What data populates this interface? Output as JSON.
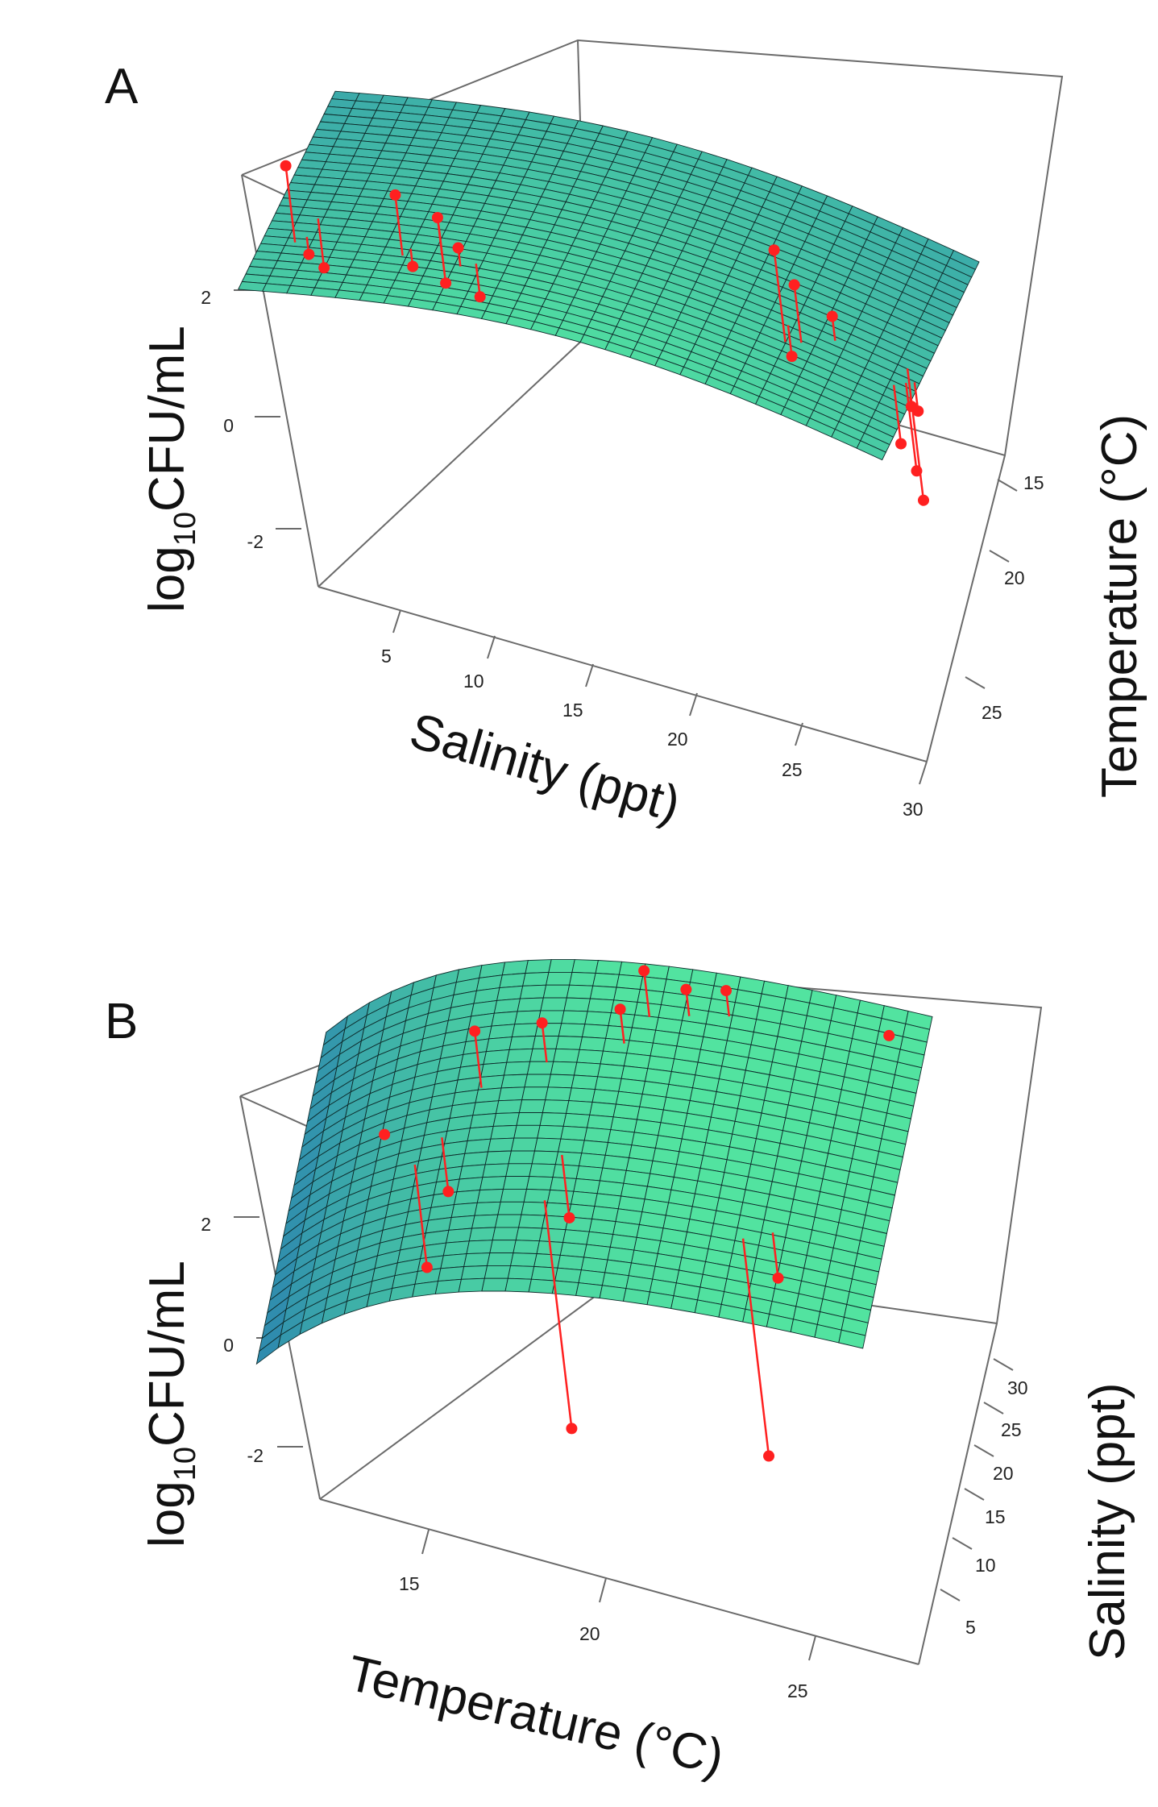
{
  "chart_data": [
    {
      "type": "surface3d",
      "panel_label": "A",
      "xlabel": "Salinity (ppt)",
      "ylabel": "Temperature (°C)",
      "zlabel_main": "log",
      "zlabel_sub": "10",
      "zlabel_rest": "CFU/mL",
      "x_ticks": [
        "5",
        "10",
        "15",
        "20",
        "25",
        "30"
      ],
      "y_ticks": [
        "15",
        "20",
        "25"
      ],
      "z_ticks": [
        "2",
        "0",
        "-2"
      ],
      "xlim": [
        2,
        31
      ],
      "ylim": [
        12,
        28
      ],
      "zlim": [
        -3,
        4
      ],
      "surface_color_low": "#2a7fb0",
      "surface_color_high": "#52e3a0",
      "point_color": "#ff2020",
      "points": [
        {
          "x": 3.5,
          "y": 16.0,
          "z": 3.2
        },
        {
          "x": 3.9,
          "y": 16.5,
          "z": 1.2
        },
        {
          "x": 4.0,
          "y": 18.0,
          "z": 0.4
        },
        {
          "x": 8.5,
          "y": 15.8,
          "z": 3.3
        },
        {
          "x": 8.7,
          "y": 16.4,
          "z": 1.6
        },
        {
          "x": 9.4,
          "y": 18.5,
          "z": 0.6
        },
        {
          "x": 10.2,
          "y": 16.2,
          "z": 2.9
        },
        {
          "x": 11.2,
          "y": 15.6,
          "z": 2.6
        },
        {
          "x": 11.8,
          "y": 16.0,
          "z": 1.5
        },
        {
          "x": 25.4,
          "y": 17.0,
          "z": 3.9
        },
        {
          "x": 25.2,
          "y": 18.2,
          "z": 1.2
        },
        {
          "x": 26.0,
          "y": 17.4,
          "z": 3.1
        },
        {
          "x": 27.2,
          "y": 18.5,
          "z": 2.2
        },
        {
          "x": 30.1,
          "y": 17.3,
          "z": 0.3
        },
        {
          "x": 30.5,
          "y": 17.8,
          "z": -0.4
        },
        {
          "x": 30.8,
          "y": 18.1,
          "z": 0.8
        },
        {
          "x": 30.3,
          "y": 18.8,
          "z": -1.4
        },
        {
          "x": 30.9,
          "y": 17.0,
          "z": 1.3
        }
      ]
    },
    {
      "type": "surface3d",
      "panel_label": "B",
      "xlabel": "Temperature (°C)",
      "ylabel": "Salinity (ppt)",
      "zlabel_main": "log",
      "zlabel_sub": "10",
      "zlabel_rest": "CFU/mL",
      "x_ticks": [
        "15",
        "20",
        "25"
      ],
      "y_ticks": [
        "5",
        "10",
        "15",
        "20",
        "25",
        "30"
      ],
      "z_ticks": [
        "2",
        "0",
        "-2"
      ],
      "xlim": [
        12,
        28
      ],
      "ylim": [
        2,
        31
      ],
      "zlim": [
        -3,
        4
      ],
      "surface_color_low": "#2a7fb0",
      "surface_color_high": "#52e3a0",
      "point_color": "#ff2020",
      "points": [
        {
          "x": 14.5,
          "y": 18.0,
          "z": 0.8
        },
        {
          "x": 15.6,
          "y": 14.0,
          "z": -1.0
        },
        {
          "x": 16.2,
          "y": 16.0,
          "z": 0.4
        },
        {
          "x": 17.0,
          "y": 20.0,
          "z": 3.3
        },
        {
          "x": 18.6,
          "y": 22.0,
          "z": 3.4
        },
        {
          "x": 19.3,
          "y": 10.0,
          "z": -2.8
        },
        {
          "x": 19.5,
          "y": 14.0,
          "z": 1.1
        },
        {
          "x": 20.5,
          "y": 24.0,
          "z": 3.7
        },
        {
          "x": 21.0,
          "y": 26.5,
          "z": 4.1
        },
        {
          "x": 22.0,
          "y": 27.0,
          "z": 3.8
        },
        {
          "x": 23.0,
          "y": 27.5,
          "z": 3.9
        },
        {
          "x": 24.5,
          "y": 9.0,
          "z": -1.9
        },
        {
          "x": 25.2,
          "y": 10.0,
          "z": 2.1
        },
        {
          "x": 27.0,
          "y": 29.0,
          "z": 3.5
        }
      ]
    }
  ]
}
